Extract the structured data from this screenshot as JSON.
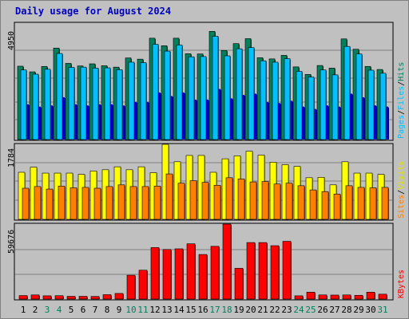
{
  "chart_data": {
    "type": "bar",
    "title": "Daily usage for August 2024",
    "categories": [
      "1",
      "2",
      "3",
      "4",
      "5",
      "6",
      "7",
      "8",
      "9",
      "10",
      "11",
      "12",
      "13",
      "14",
      "15",
      "16",
      "17",
      "18",
      "19",
      "20",
      "21",
      "22",
      "23",
      "24",
      "25",
      "26",
      "27",
      "28",
      "29",
      "30",
      "31"
    ],
    "weekend_days": [
      "3",
      "4",
      "10",
      "11",
      "17",
      "18",
      "24",
      "25",
      "31"
    ],
    "panels": [
      {
        "id": "hits_files_pages",
        "max_label": "4950",
        "ylim": [
          0,
          4950
        ],
        "legend": [
          "Pages",
          "Files",
          "Hits"
        ],
        "series": [
          {
            "name": "Hits",
            "color": "#00805c",
            "values": [
              3120,
              2880,
              3110,
              3890,
              3240,
              3130,
              3220,
              3140,
              3080,
              3470,
              3420,
              4310,
              3990,
              4310,
              3650,
              3640,
              4600,
              3790,
              4080,
              4290,
              3480,
              3430,
              3580,
              3090,
              2770,
              3150,
              3040,
              4280,
              3840,
              3110,
              2980
            ]
          },
          {
            "name": "Files",
            "color": "#00c0ff",
            "values": [
              2960,
              2780,
              2990,
              3660,
              3070,
              3080,
              3040,
              3050,
              2970,
              3290,
              3270,
              4050,
              3760,
              4020,
              3520,
              3530,
              4390,
              3560,
              3860,
              3910,
              3350,
              3290,
              3440,
              2900,
              2660,
              2960,
              2750,
              3960,
              3640,
              2950,
              2820
            ]
          },
          {
            "name": "Pages",
            "color": "#0000c0",
            "values": [
              1500,
              1400,
              1450,
              1800,
              1500,
              1450,
              1500,
              1500,
              1450,
              1600,
              1600,
              2000,
              1850,
              2000,
              1700,
              1700,
              2150,
              1750,
              1900,
              1950,
              1600,
              1550,
              1650,
              1400,
              1300,
              1450,
              1400,
              1950,
              1800,
              1450,
              1400
            ]
          }
        ]
      },
      {
        "id": "visits_sites",
        "max_label": "1784",
        "ylim": [
          0,
          1784
        ],
        "legend": [
          "Sites",
          "Visits"
        ],
        "series": [
          {
            "name": "Visits",
            "color": "#ffff00",
            "values": [
              1120,
              1240,
              1100,
              1100,
              1100,
              1070,
              1150,
              1180,
              1250,
              1180,
              1250,
              1110,
              1784,
              1370,
              1520,
              1520,
              1120,
              1440,
              1510,
              1620,
              1530,
              1360,
              1300,
              1260,
              990,
              1000,
              820,
              1370,
              1100,
              1100,
              1070
            ]
          },
          {
            "name": "Sites",
            "color": "#ff8000",
            "values": [
              740,
              780,
              720,
              790,
              750,
              760,
              740,
              780,
              820,
              780,
              780,
              790,
              1080,
              860,
              920,
              880,
              810,
              990,
              960,
              890,
              900,
              840,
              860,
              800,
              700,
              660,
              600,
              800,
              760,
              750,
              760
            ]
          }
        ]
      },
      {
        "id": "kbytes",
        "max_label": "59676",
        "ylim": [
          0,
          59676
        ],
        "legend": [
          "KBytes"
        ],
        "series": [
          {
            "name": "KBytes",
            "color": "#ff0000",
            "values": [
              2800,
              3300,
              2600,
              2700,
              2200,
              2200,
              2100,
              3500,
              4500,
              19000,
              23000,
              41000,
              39500,
              40000,
              44000,
              35500,
              42000,
              59676,
              24500,
              45000,
              45000,
              42500,
              46000,
              2600,
              5500,
              3300,
              3200,
              3300,
              3000,
              5500,
              3900
            ]
          }
        ]
      }
    ]
  }
}
